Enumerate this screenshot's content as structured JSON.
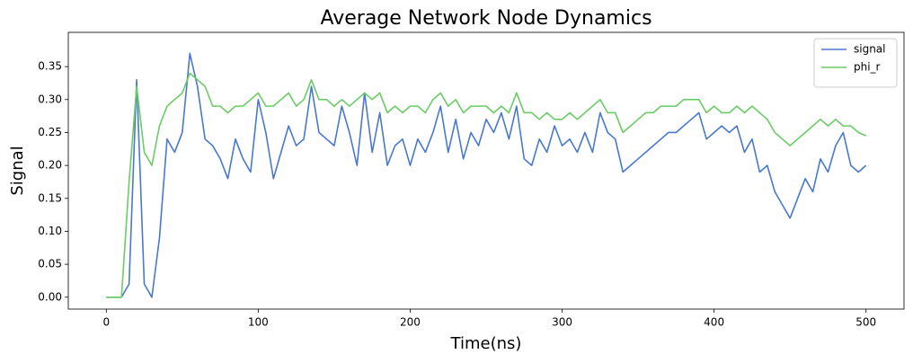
{
  "chart_data": {
    "type": "line",
    "title": "Average Network Node Dynamics",
    "xlabel": "Time(ns)",
    "ylabel": "Signal",
    "x": [
      0,
      5,
      10,
      15,
      20,
      25,
      30,
      35,
      40,
      45,
      50,
      55,
      60,
      65,
      70,
      75,
      80,
      85,
      90,
      95,
      100,
      105,
      110,
      115,
      120,
      125,
      130,
      135,
      140,
      145,
      150,
      155,
      160,
      165,
      170,
      175,
      180,
      185,
      190,
      195,
      200,
      205,
      210,
      215,
      220,
      225,
      230,
      235,
      240,
      245,
      250,
      255,
      260,
      265,
      270,
      275,
      280,
      285,
      290,
      295,
      300,
      305,
      310,
      315,
      320,
      325,
      330,
      335,
      340,
      345,
      350,
      355,
      360,
      365,
      370,
      375,
      380,
      385,
      390,
      395,
      400,
      405,
      410,
      415,
      420,
      425,
      430,
      435,
      440,
      445,
      450,
      455,
      460,
      465,
      470,
      475,
      480,
      485,
      490,
      495,
      500
    ],
    "series": [
      {
        "name": "signal",
        "color": "#4878cf",
        "values": [
          0,
          0,
          0,
          0.02,
          0.33,
          0.02,
          0,
          0.09,
          0.24,
          0.22,
          0.25,
          0.37,
          0.32,
          0.24,
          0.23,
          0.21,
          0.18,
          0.24,
          0.21,
          0.19,
          0.3,
          0.25,
          0.18,
          0.22,
          0.26,
          0.23,
          0.24,
          0.32,
          0.25,
          0.24,
          0.23,
          0.29,
          0.25,
          0.2,
          0.31,
          0.22,
          0.28,
          0.2,
          0.23,
          0.24,
          0.2,
          0.24,
          0.22,
          0.25,
          0.29,
          0.22,
          0.27,
          0.21,
          0.25,
          0.23,
          0.27,
          0.25,
          0.28,
          0.24,
          0.29,
          0.21,
          0.2,
          0.24,
          0.22,
          0.26,
          0.23,
          0.24,
          0.22,
          0.25,
          0.22,
          0.28,
          0.25,
          0.24,
          0.19,
          0.2,
          0.21,
          0.22,
          0.23,
          0.24,
          0.25,
          0.25,
          0.26,
          0.27,
          0.28,
          0.24,
          0.25,
          0.26,
          0.25,
          0.26,
          0.22,
          0.24,
          0.19,
          0.2,
          0.16,
          0.14,
          0.12,
          0.15,
          0.18,
          0.16,
          0.21,
          0.19,
          0.23,
          0.25,
          0.2,
          0.19,
          0.2
        ]
      },
      {
        "name": "phi_r",
        "color": "#6acc64",
        "values": [
          0,
          0,
          0,
          0.175,
          0.32,
          0.22,
          0.2,
          0.26,
          0.29,
          0.3,
          0.31,
          0.34,
          0.33,
          0.32,
          0.29,
          0.29,
          0.28,
          0.29,
          0.29,
          0.3,
          0.31,
          0.29,
          0.29,
          0.3,
          0.31,
          0.29,
          0.3,
          0.33,
          0.3,
          0.3,
          0.29,
          0.3,
          0.29,
          0.3,
          0.31,
          0.3,
          0.31,
          0.28,
          0.29,
          0.28,
          0.29,
          0.29,
          0.28,
          0.3,
          0.31,
          0.29,
          0.3,
          0.28,
          0.29,
          0.29,
          0.29,
          0.28,
          0.29,
          0.28,
          0.31,
          0.28,
          0.28,
          0.27,
          0.28,
          0.27,
          0.27,
          0.28,
          0.27,
          0.28,
          0.29,
          0.3,
          0.28,
          0.28,
          0.25,
          0.26,
          0.27,
          0.28,
          0.28,
          0.29,
          0.29,
          0.29,
          0.3,
          0.3,
          0.3,
          0.28,
          0.29,
          0.28,
          0.28,
          0.29,
          0.28,
          0.29,
          0.28,
          0.27,
          0.25,
          0.24,
          0.23,
          0.24,
          0.25,
          0.26,
          0.27,
          0.26,
          0.27,
          0.26,
          0.26,
          0.25,
          0.245
        ]
      }
    ],
    "xlim": [
      -25,
      525
    ],
    "ylim": [
      -0.018,
      0.402
    ],
    "xticks": [
      0,
      100,
      200,
      300,
      400,
      500
    ],
    "yticks": [
      {
        "value": 0,
        "label": "0.00"
      },
      0.05,
      {
        "value": 0.1,
        "label": "0.10"
      },
      0.15,
      {
        "value": 0.2,
        "label": "0.20"
      },
      0.25,
      {
        "value": 0.3,
        "label": "0.30"
      },
      0.35
    ],
    "legend": "upper right",
    "grid": false
  }
}
